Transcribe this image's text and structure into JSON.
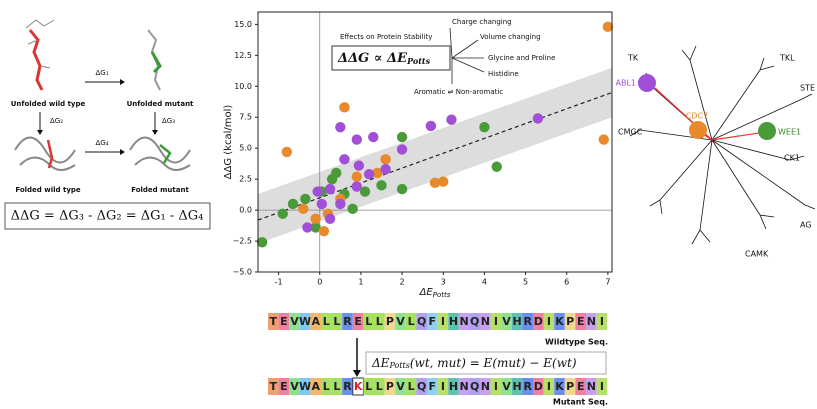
{
  "scheme": {
    "unfolded_wt": "Unfolded wild type",
    "unfolded_mut": "Unfolded mutant",
    "folded_wt": "Folded wild type",
    "folded_mut": "Folded mutant",
    "dg1": "ΔG₁",
    "dg2": "ΔG₂",
    "dg3": "ΔG₃",
    "dg4": "ΔG₄",
    "equation": "ΔΔG = ΔG₃ - ΔG₂ = ΔG₁ - ΔG₄"
  },
  "chart_data": {
    "type": "scatter",
    "x_label": "ΔE",
    "x_label_sub": "Potts",
    "y_label": "ΔΔG (kcal/mol)",
    "xlim": [
      -1.5,
      7.1
    ],
    "ylim": [
      -5,
      16
    ],
    "xticks": [
      -1,
      0,
      1,
      2,
      3,
      4,
      5,
      6,
      7
    ],
    "yticks": [
      {
        "value": -5,
        "label": "−5.0"
      },
      {
        "value": -2.5,
        "label": "−2.5"
      },
      {
        "value": 0,
        "label": "0.0"
      },
      2.5,
      {
        "value": 5,
        "label": "5.0"
      },
      7.5,
      {
        "value": 10,
        "label": "10.0"
      },
      12.5,
      {
        "value": 15,
        "label": "15.0"
      }
    ],
    "annotations": {
      "effects": "Effects on Protein Stability",
      "charge": "Charge changing",
      "volume": "Volume changing",
      "glycine": "Glycine and Proline",
      "histidine": "Histidine",
      "aromatic": "Aromatic ⇌ Non-aromatic",
      "relation": "ΔΔG ∝ ΔE",
      "relation_sub": "Potts"
    },
    "band": {
      "x": [
        -1.5,
        7.1
      ],
      "lower": [
        -2.7,
        7.5
      ],
      "upper": [
        1.3,
        11.5
      ]
    },
    "fit_line": {
      "x": [
        -1.5,
        7.1
      ],
      "y": [
        -0.8,
        9.5
      ]
    },
    "series": [
      {
        "color": "#4a9a3a",
        "x": [
          -1.4,
          -0.9,
          -0.35,
          -0.65,
          -0.1,
          0.4,
          0.3,
          0.6,
          1.1,
          1.5,
          2.0,
          4.0,
          4.3,
          2.0,
          0.05,
          0.8
        ],
        "y": [
          -2.6,
          -0.3,
          0.9,
          0.5,
          -1.4,
          3.0,
          2.5,
          1.3,
          1.5,
          2.0,
          5.9,
          6.7,
          3.5,
          1.7,
          1.5,
          0.1
        ]
      },
      {
        "color": "#e8892b",
        "x": [
          7.0,
          6.9,
          0.6,
          -0.8,
          1.4,
          2.8,
          3.0,
          0.2,
          -0.1,
          0.1,
          -0.4,
          0.9,
          0.5,
          1.6
        ],
        "y": [
          14.8,
          5.7,
          8.3,
          4.7,
          3.0,
          2.2,
          2.3,
          -0.3,
          -0.7,
          -1.7,
          0.1,
          2.7,
          0.9,
          4.1
        ]
      },
      {
        "color": "#a24fd8",
        "x": [
          5.3,
          3.2,
          2.7,
          2.0,
          1.3,
          0.9,
          0.5,
          0.6,
          0.95,
          1.2,
          1.6,
          -0.05,
          0.25,
          0.05,
          0.5,
          0.25,
          -0.3,
          0.9
        ],
        "y": [
          7.4,
          7.3,
          6.8,
          4.9,
          5.9,
          5.7,
          6.7,
          4.1,
          3.6,
          2.9,
          3.3,
          1.5,
          1.7,
          0.5,
          0.5,
          -0.7,
          -1.4,
          1.9
        ]
      }
    ]
  },
  "tree": {
    "tk": "TK",
    "tkl": "TKL",
    "ste": "STE",
    "cmgc": "CMGC",
    "ck1": "CK1",
    "ag": "AG",
    "camk": "CAMK",
    "abl1": "ABL1",
    "cdc7": "CDC7",
    "wee1": "WEE1"
  },
  "sequences": {
    "wildtype": [
      "T",
      "E",
      "V",
      "W",
      "A",
      "L",
      "L",
      "R",
      "E",
      "L",
      "L",
      "P",
      "V",
      "L",
      "Q",
      "F",
      "I",
      "H",
      "N",
      "Q",
      "N",
      "I",
      "V",
      "H",
      "R",
      "D",
      "I",
      "K",
      "P",
      "E",
      "N",
      "I"
    ],
    "wildtype_label": "Wildtype Seq.",
    "mutant": [
      "T",
      "E",
      "V",
      "W",
      "A",
      "L",
      "L",
      "R",
      "K",
      "L",
      "L",
      "P",
      "V",
      "L",
      "Q",
      "F",
      "I",
      "H",
      "N",
      "Q",
      "N",
      "I",
      "V",
      "H",
      "R",
      "D",
      "I",
      "K",
      "P",
      "E",
      "N",
      "I"
    ],
    "mutant_label": "Mutant Seq.",
    "energy_main": "ΔE",
    "energy_sub": "Potts",
    "energy_rest": "(wt, mut) = E(mut) − E(wt)"
  }
}
